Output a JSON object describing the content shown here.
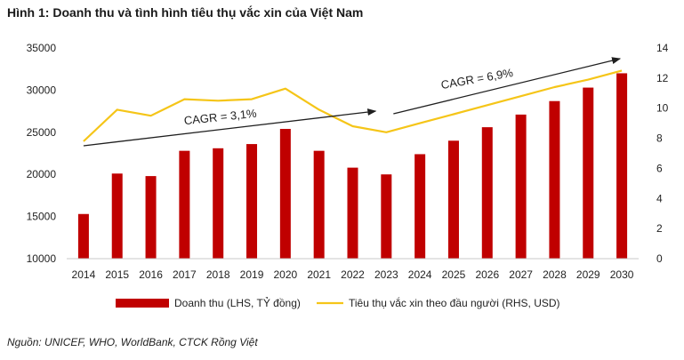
{
  "title": "Hình 1: Doanh thu và tình hình tiêu thụ vắc xin của Việt Nam",
  "source": "Nguồn: UNICEF, WHO, WorldBank, CTCK Rồng Việt",
  "colors": {
    "bar": "#c00000",
    "line": "#f5c518",
    "arrow": "#1f1f1f"
  },
  "chart_data": {
    "type": "bar",
    "categories": [
      "2014",
      "2015",
      "2016",
      "2017",
      "2018",
      "2019",
      "2020",
      "2021",
      "2022",
      "2023",
      "2024",
      "2025",
      "2026",
      "2027",
      "2028",
      "2029",
      "2030"
    ],
    "series": [
      {
        "name": "Doanh thu (LHS, TỶ đồng)",
        "type": "bar",
        "axis": "left",
        "values": [
          15300,
          20100,
          19800,
          22800,
          23100,
          23600,
          25400,
          22800,
          20800,
          20000,
          22400,
          24000,
          25600,
          27100,
          28700,
          30300,
          32000
        ]
      },
      {
        "name": "Tiêu thụ vắc xin theo đầu người (RHS, USD)",
        "type": "line",
        "axis": "right",
        "values": [
          7.8,
          9.9,
          9.5,
          10.6,
          10.5,
          10.6,
          11.3,
          9.9,
          8.8,
          8.4,
          9.0,
          9.6,
          10.2,
          10.8,
          11.4,
          11.9,
          12.5
        ]
      }
    ],
    "y_left": {
      "min": 10000,
      "max": 35000,
      "ticks": [
        10000,
        15000,
        20000,
        25000,
        30000,
        35000
      ]
    },
    "y_right": {
      "min": 0,
      "max": 14,
      "ticks": [
        0,
        2,
        4,
        6,
        8,
        10,
        12,
        14
      ]
    },
    "grid": false,
    "legend": "bottom",
    "annotations": [
      {
        "text": "CAGR = 3,1%",
        "from": "2014",
        "to": "2023"
      },
      {
        "text": "CAGR = 6,9%",
        "from": "2023",
        "to": "2030"
      }
    ]
  }
}
